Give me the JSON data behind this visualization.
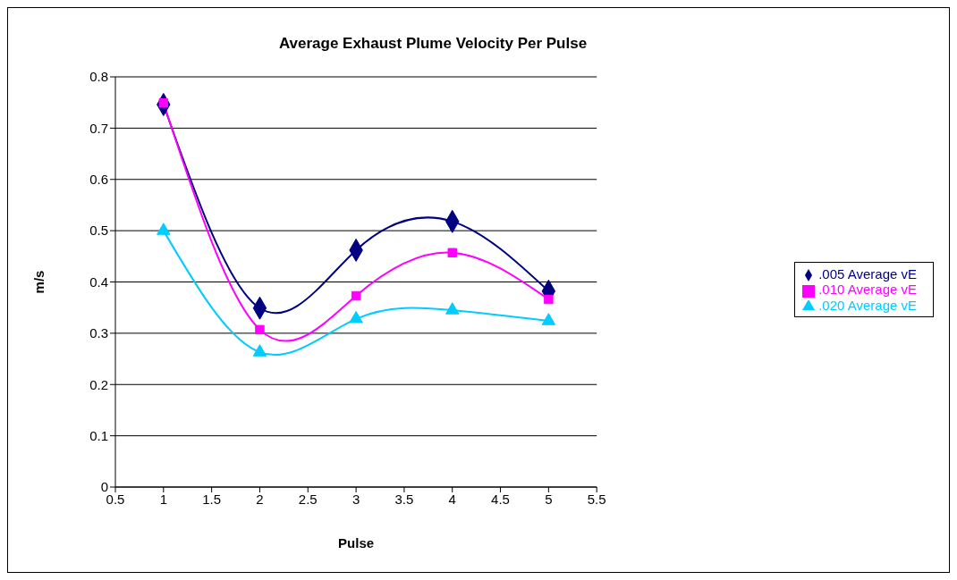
{
  "chart_data": {
    "type": "line",
    "title": "Average Exhaust Plume Velocity Per Pulse",
    "xlabel": "Pulse",
    "ylabel": "m/s",
    "x": [
      1,
      2,
      3,
      4,
      5
    ],
    "series": [
      {
        "name": ".005 Average vE",
        "color": "#000080",
        "marker": "diamond",
        "values": [
          0.746,
          0.349,
          0.462,
          0.518,
          0.382
        ]
      },
      {
        "name": ".010 Average vE",
        "color": "#ff00ff",
        "marker": "square",
        "values": [
          0.749,
          0.307,
          0.373,
          0.457,
          0.366
        ]
      },
      {
        "name": ".020 Average vE",
        "color": "#00ccff",
        "marker": "triangle",
        "values": [
          0.5,
          0.263,
          0.328,
          0.345,
          0.324
        ]
      }
    ],
    "xlim": [
      0.5,
      5.5
    ],
    "xticks": [
      0.5,
      1,
      1.5,
      2,
      2.5,
      3,
      3.5,
      4,
      4.5,
      5,
      5.5
    ],
    "ylim": [
      0,
      0.8
    ],
    "yticks": [
      0,
      0.1,
      0.2,
      0.3,
      0.4,
      0.5,
      0.6,
      0.7,
      0.8
    ],
    "grid": "y",
    "legend": "right",
    "line_style": "solid"
  }
}
